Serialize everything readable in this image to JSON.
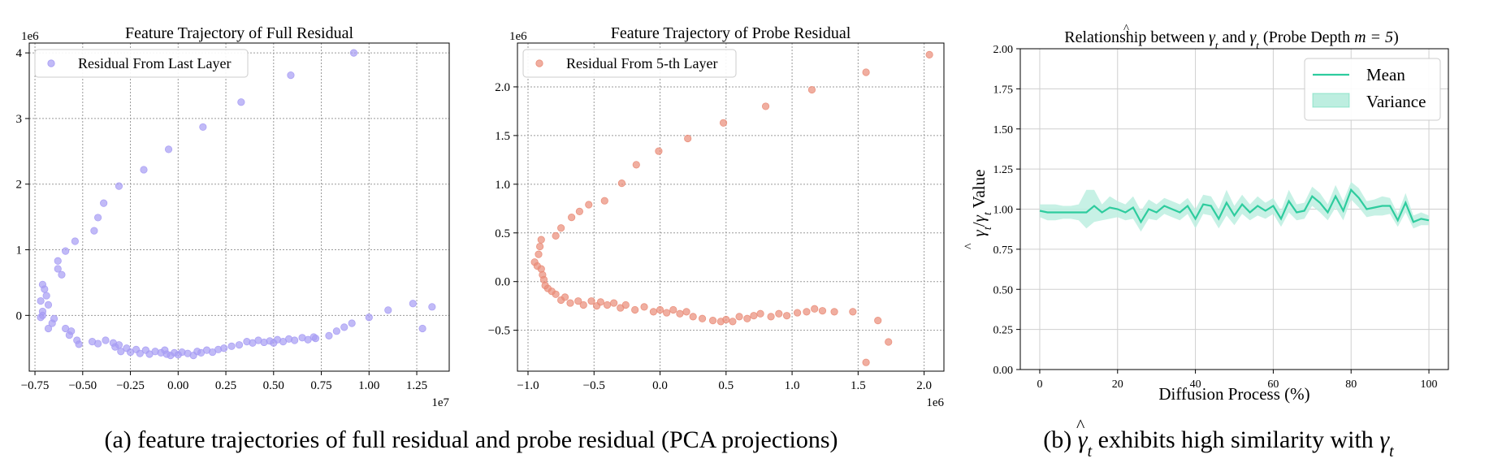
{
  "colors": {
    "scatter_a": "#a79cf4",
    "scatter_b": "#e98c78",
    "mean": "#2ecc9e",
    "variance": "#bdeee0"
  },
  "chart_data": [
    {
      "type": "scatter",
      "title": "Feature Trajectory of Full Residual",
      "x_offset_label": "1e7",
      "y_offset_label": "1e6",
      "xlim": [
        -0.78,
        1.42
      ],
      "ylim": [
        -0.85,
        4.15
      ],
      "xticks": [
        -0.75,
        -0.5,
        -0.25,
        0.0,
        0.25,
        0.5,
        0.75,
        1.0,
        1.25
      ],
      "xtick_labels": [
        "−0.75",
        "−0.50",
        "−0.25",
        "0.00",
        "0.25",
        "0.50",
        "0.75",
        "1.00",
        "1.25"
      ],
      "yticks": [
        0,
        1,
        2,
        3,
        4
      ],
      "ytick_labels": [
        "0",
        "1",
        "2",
        "3",
        "4"
      ],
      "grid": true,
      "legend_position": "top-left",
      "series": [
        {
          "name": "Residual From Last Layer",
          "points": [
            [
              0.92,
              4.0
            ],
            [
              0.59,
              3.66
            ],
            [
              0.33,
              3.25
            ],
            [
              0.13,
              2.87
            ],
            [
              -0.05,
              2.53
            ],
            [
              -0.18,
              2.22
            ],
            [
              -0.31,
              1.97
            ],
            [
              -0.39,
              1.71
            ],
            [
              -0.42,
              1.49
            ],
            [
              -0.44,
              1.29
            ],
            [
              -0.54,
              1.13
            ],
            [
              -0.59,
              0.98
            ],
            [
              -0.63,
              0.83
            ],
            [
              -0.63,
              0.71
            ],
            [
              -0.61,
              0.62
            ],
            [
              -0.71,
              0.47
            ],
            [
              -0.7,
              0.4
            ],
            [
              -0.69,
              0.3
            ],
            [
              -0.72,
              0.22
            ],
            [
              -0.68,
              0.16
            ],
            [
              -0.71,
              0.06
            ],
            [
              -0.71,
              0.0
            ],
            [
              -0.72,
              -0.03
            ],
            [
              -0.65,
              -0.05
            ],
            [
              -0.66,
              -0.12
            ],
            [
              -0.68,
              -0.2
            ],
            [
              -0.59,
              -0.2
            ],
            [
              -0.56,
              -0.24
            ],
            [
              -0.57,
              -0.3
            ],
            [
              -0.53,
              -0.38
            ],
            [
              -0.52,
              -0.44
            ],
            [
              -0.45,
              -0.4
            ],
            [
              -0.42,
              -0.43
            ],
            [
              -0.38,
              -0.38
            ],
            [
              -0.34,
              -0.42
            ],
            [
              -0.33,
              -0.48
            ],
            [
              -0.31,
              -0.45
            ],
            [
              -0.3,
              -0.55
            ],
            [
              -0.27,
              -0.5
            ],
            [
              -0.25,
              -0.56
            ],
            [
              -0.22,
              -0.52
            ],
            [
              -0.2,
              -0.58
            ],
            [
              -0.17,
              -0.53
            ],
            [
              -0.15,
              -0.59
            ],
            [
              -0.12,
              -0.55
            ],
            [
              -0.09,
              -0.57
            ],
            [
              -0.07,
              -0.53
            ],
            [
              -0.06,
              -0.59
            ],
            [
              -0.04,
              -0.61
            ],
            [
              -0.02,
              -0.57
            ],
            [
              0.0,
              -0.6
            ],
            [
              0.02,
              -0.56
            ],
            [
              0.05,
              -0.58
            ],
            [
              0.08,
              -0.61
            ],
            [
              0.1,
              -0.55
            ],
            [
              0.12,
              -0.57
            ],
            [
              0.15,
              -0.53
            ],
            [
              0.18,
              -0.56
            ],
            [
              0.21,
              -0.52
            ],
            [
              0.24,
              -0.5
            ],
            [
              0.28,
              -0.47
            ],
            [
              0.32,
              -0.45
            ],
            [
              0.36,
              -0.4
            ],
            [
              0.39,
              -0.42
            ],
            [
              0.42,
              -0.38
            ],
            [
              0.45,
              -0.41
            ],
            [
              0.48,
              -0.39
            ],
            [
              0.5,
              -0.42
            ],
            [
              0.52,
              -0.37
            ],
            [
              0.55,
              -0.4
            ],
            [
              0.58,
              -0.36
            ],
            [
              0.61,
              -0.38
            ],
            [
              0.65,
              -0.34
            ],
            [
              0.68,
              -0.37
            ],
            [
              0.71,
              -0.33
            ],
            [
              0.72,
              -0.35
            ],
            [
              0.79,
              -0.31
            ],
            [
              0.83,
              -0.24
            ],
            [
              0.87,
              -0.18
            ],
            [
              0.91,
              -0.12
            ],
            [
              1.0,
              -0.03
            ],
            [
              1.1,
              0.08
            ],
            [
              1.23,
              0.18
            ],
            [
              1.33,
              0.13
            ],
            [
              1.28,
              -0.2
            ]
          ]
        }
      ]
    },
    {
      "type": "scatter",
      "title": "Feature Trajectory of Probe Residual",
      "x_offset_label": "1e6",
      "y_offset_label": "1e6",
      "xlim": [
        -1.08,
        2.15
      ],
      "ylim": [
        -0.92,
        2.45
      ],
      "xticks": [
        -1.0,
        -0.5,
        0.0,
        0.5,
        1.0,
        1.5,
        2.0
      ],
      "xtick_labels": [
        "−1.0",
        "−0.5",
        "0.0",
        "0.5",
        "1.0",
        "1.5",
        "2.0"
      ],
      "yticks": [
        -0.5,
        0.0,
        0.5,
        1.0,
        1.5,
        2.0
      ],
      "ytick_labels": [
        "−0.5",
        "0.0",
        "0.5",
        "1.0",
        "1.5",
        "2.0"
      ],
      "grid": true,
      "legend_position": "top-left",
      "series": [
        {
          "name": "Residual From 5-th Layer",
          "points": [
            [
              2.04,
              2.33
            ],
            [
              1.56,
              2.15
            ],
            [
              1.15,
              1.97
            ],
            [
              0.8,
              1.8
            ],
            [
              0.48,
              1.63
            ],
            [
              0.21,
              1.47
            ],
            [
              -0.01,
              1.34
            ],
            [
              -0.18,
              1.2
            ],
            [
              -0.29,
              1.01
            ],
            [
              -0.42,
              0.83
            ],
            [
              -0.54,
              0.79
            ],
            [
              -0.61,
              0.72
            ],
            [
              -0.67,
              0.66
            ],
            [
              -0.75,
              0.55
            ],
            [
              -0.79,
              0.47
            ],
            [
              -0.9,
              0.43
            ],
            [
              -0.91,
              0.36
            ],
            [
              -0.92,
              0.28
            ],
            [
              -0.95,
              0.2
            ],
            [
              -0.93,
              0.16
            ],
            [
              -0.9,
              0.13
            ],
            [
              -0.89,
              0.07
            ],
            [
              -0.88,
              0.02
            ],
            [
              -0.87,
              -0.04
            ],
            [
              -0.85,
              -0.07
            ],
            [
              -0.82,
              -0.1
            ],
            [
              -0.79,
              -0.13
            ],
            [
              -0.75,
              -0.19
            ],
            [
              -0.72,
              -0.16
            ],
            [
              -0.68,
              -0.22
            ],
            [
              -0.62,
              -0.2
            ],
            [
              -0.58,
              -0.24
            ],
            [
              -0.52,
              -0.2
            ],
            [
              -0.48,
              -0.25
            ],
            [
              -0.45,
              -0.21
            ],
            [
              -0.4,
              -0.24
            ],
            [
              -0.35,
              -0.22
            ],
            [
              -0.3,
              -0.27
            ],
            [
              -0.26,
              -0.24
            ],
            [
              -0.19,
              -0.29
            ],
            [
              -0.12,
              -0.26
            ],
            [
              -0.05,
              -0.31
            ],
            [
              0.0,
              -0.29
            ],
            [
              0.05,
              -0.32
            ],
            [
              0.1,
              -0.29
            ],
            [
              0.15,
              -0.33
            ],
            [
              0.2,
              -0.31
            ],
            [
              0.25,
              -0.36
            ],
            [
              0.32,
              -0.38
            ],
            [
              0.4,
              -0.4
            ],
            [
              0.46,
              -0.41
            ],
            [
              0.5,
              -0.39
            ],
            [
              0.55,
              -0.41
            ],
            [
              0.6,
              -0.36
            ],
            [
              0.66,
              -0.38
            ],
            [
              0.71,
              -0.35
            ],
            [
              0.76,
              -0.33
            ],
            [
              0.84,
              -0.36
            ],
            [
              0.9,
              -0.33
            ],
            [
              0.96,
              -0.35
            ],
            [
              1.04,
              -0.32
            ],
            [
              1.11,
              -0.31
            ],
            [
              1.17,
              -0.28
            ],
            [
              1.23,
              -0.3
            ],
            [
              1.32,
              -0.31
            ],
            [
              1.46,
              -0.31
            ],
            [
              1.65,
              -0.4
            ],
            [
              1.73,
              -0.62
            ],
            [
              1.56,
              -0.83
            ]
          ]
        }
      ]
    },
    {
      "type": "line",
      "title": "Relationship between γ̂t and γt (Probe Depth m = 5)",
      "xlabel": "Diffusion Process (%)",
      "ylabel": "γ̂t/γt Value",
      "xlim": [
        -5,
        105
      ],
      "ylim": [
        0,
        2
      ],
      "xticks": [
        0,
        20,
        40,
        60,
        80,
        100
      ],
      "xtick_labels": [
        "0",
        "20",
        "40",
        "60",
        "80",
        "100"
      ],
      "yticks": [
        0,
        0.25,
        0.5,
        0.75,
        1.0,
        1.25,
        1.5,
        1.75,
        2.0
      ],
      "ytick_labels": [
        "0.00",
        "0.25",
        "0.50",
        "0.75",
        "1.00",
        "1.25",
        "1.50",
        "1.75",
        "2.00"
      ],
      "grid": true,
      "legend_position": "top-right",
      "series": [
        {
          "name": "Mean",
          "x": [
            0,
            2,
            4,
            6,
            8,
            10,
            12,
            14,
            16,
            18,
            20,
            22,
            24,
            26,
            28,
            30,
            32,
            34,
            36,
            38,
            40,
            42,
            44,
            46,
            48,
            50,
            52,
            54,
            56,
            58,
            60,
            62,
            64,
            66,
            68,
            70,
            72,
            74,
            76,
            78,
            80,
            82,
            84,
            86,
            88,
            90,
            92,
            94,
            96,
            98,
            100
          ],
          "values": [
            0.99,
            0.98,
            0.98,
            0.98,
            0.98,
            0.98,
            0.98,
            1.02,
            0.98,
            1.01,
            1.0,
            0.98,
            1.01,
            0.92,
            1.0,
            0.98,
            1.02,
            1.0,
            0.98,
            1.02,
            0.94,
            1.03,
            1.02,
            0.94,
            1.04,
            0.96,
            1.03,
            0.98,
            1.02,
            0.99,
            1.02,
            0.94,
            1.05,
            0.98,
            0.99,
            1.08,
            1.04,
            0.98,
            1.08,
            0.99,
            1.12,
            1.07,
            1.0,
            1.01,
            1.02,
            1.02,
            0.93,
            1.04,
            0.92,
            0.94,
            0.93
          ]
        },
        {
          "name": "Variance",
          "lower": [
            0.95,
            0.93,
            0.93,
            0.94,
            0.94,
            0.93,
            0.88,
            0.92,
            0.93,
            0.94,
            0.95,
            0.93,
            0.94,
            0.86,
            0.94,
            0.93,
            0.97,
            0.95,
            0.93,
            0.97,
            0.88,
            0.97,
            0.96,
            0.88,
            0.96,
            0.9,
            0.97,
            0.93,
            0.96,
            0.94,
            0.97,
            0.89,
            0.98,
            0.93,
            0.94,
            1.02,
            0.98,
            0.93,
            1.01,
            0.93,
            1.06,
            1.01,
            0.95,
            0.96,
            0.96,
            0.97,
            0.89,
            0.98,
            0.88,
            0.9,
            0.9
          ],
          "upper": [
            1.03,
            1.03,
            1.03,
            1.02,
            1.02,
            1.03,
            1.12,
            1.12,
            1.03,
            1.08,
            1.05,
            1.03,
            1.08,
            0.99,
            1.06,
            1.03,
            1.07,
            1.05,
            1.03,
            1.07,
            1.0,
            1.09,
            1.08,
            1.0,
            1.12,
            1.02,
            1.09,
            1.03,
            1.08,
            1.04,
            1.07,
            0.99,
            1.12,
            1.03,
            1.04,
            1.14,
            1.1,
            1.03,
            1.15,
            1.05,
            1.17,
            1.13,
            1.05,
            1.06,
            1.08,
            1.07,
            0.97,
            1.1,
            0.96,
            0.98,
            0.96
          ]
        }
      ]
    }
  ],
  "captions": {
    "a": "(a) feature trajectories of full residual and probe residual (PCA projections)",
    "b_prefix": "(b) ",
    "b_mid": " exhibits high similarity with ",
    "gamma": "γ",
    "t": "t",
    "hat": "^"
  },
  "title_c": {
    "prefix": "Relationship between ",
    "and": " and ",
    "suffix": " (Probe Depth ",
    "m_eq": "m = 5",
    "close": ")"
  },
  "ylabel_c": {
    "slash": "/",
    "value": " Value"
  }
}
